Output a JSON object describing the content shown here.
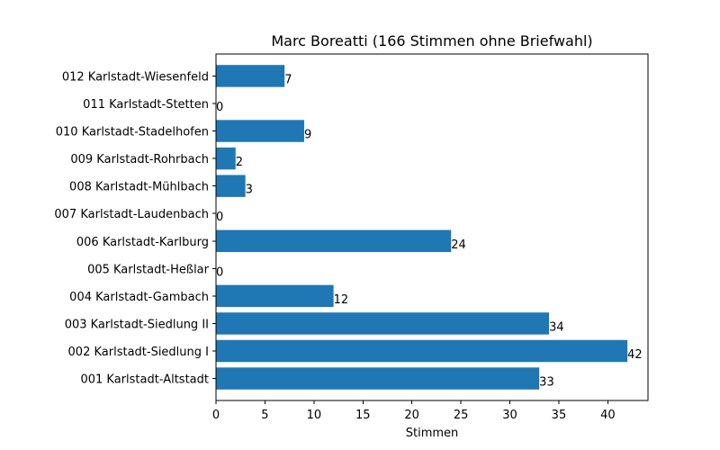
{
  "chart_data": {
    "type": "bar",
    "orientation": "horizontal",
    "title": "Marc Boreatti (166 Stimmen ohne Briefwahl)",
    "xlabel": "Stimmen",
    "ylabel": "",
    "xlim": [
      0,
      44.1
    ],
    "xticks": [
      0,
      5,
      10,
      15,
      20,
      25,
      30,
      35,
      40
    ],
    "color": "#1f77b4",
    "grid": false,
    "categories": [
      "001 Karlstadt-Altstadt",
      "002 Karlstadt-Siedlung I",
      "003 Karlstadt-Siedlung II",
      "004 Karlstadt-Gambach",
      "005 Karlstadt-Heßlar",
      "006 Karlstadt-Karlburg",
      "007 Karlstadt-Laudenbach",
      "008 Karlstadt-Mühlbach",
      "009 Karlstadt-Rohrbach",
      "010 Karlstadt-Stadelhofen",
      "011 Karlstadt-Stetten",
      "012 Karlstadt-Wiesenfeld"
    ],
    "values": [
      33,
      42,
      34,
      12,
      0,
      24,
      0,
      3,
      2,
      9,
      0,
      7
    ]
  }
}
